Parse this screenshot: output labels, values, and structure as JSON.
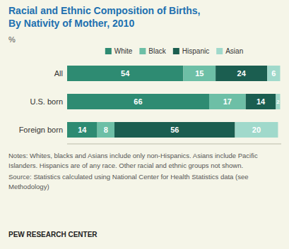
{
  "chart_data": {
    "type": "bar",
    "orientation": "horizontal",
    "stacked": true,
    "data_labels": true,
    "title": "Racial and Ethnic Composition of Births,",
    "subtitle": "By Nativity of Mother, 2010",
    "xlabel": "%",
    "categories": [
      "All",
      "U.S. born",
      "Foreign born"
    ],
    "series": [
      {
        "name": "White",
        "color": "#2e8b72",
        "values": [
          54,
          66,
          14
        ]
      },
      {
        "name": "Black",
        "color": "#6dbfa6",
        "values": [
          15,
          17,
          8
        ]
      },
      {
        "name": "Hispanic",
        "color": "#1b5e50",
        "values": [
          24,
          14,
          56
        ]
      },
      {
        "name": "Asian",
        "color": "#a0d9cb",
        "values": [
          6,
          2,
          20
        ]
      }
    ],
    "xlim": [
      0,
      99.5
    ],
    "xticks": [],
    "tick_labels": "y",
    "legend": "top",
    "annotations": [
      "Notes: Whites, blacks and Asians include only non-Hispanics. Asians include Pacific",
      "Islanders. Hispanics are of any race. Other racial and ethnic groups not shown.",
      "Source: Statistics calculated using National Center for Health Statistics data (see",
      "Methodology)",
      "PEW RESEARCH CENTER"
    ]
  }
}
